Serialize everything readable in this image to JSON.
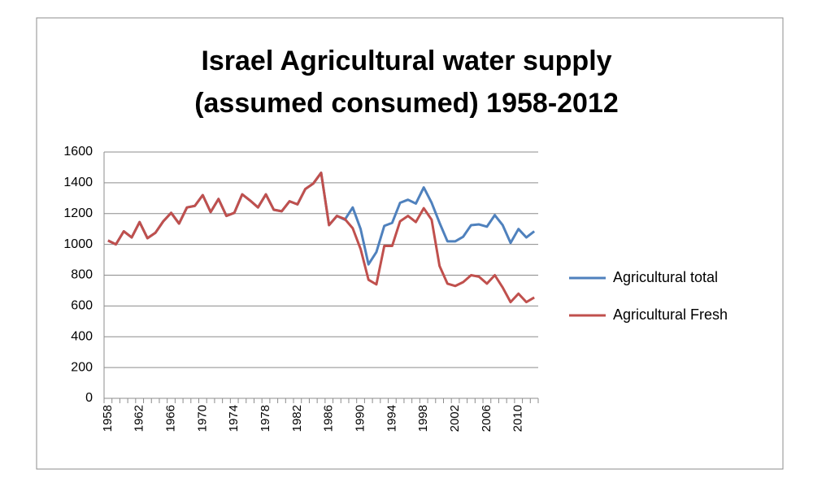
{
  "chart_data": {
    "type": "line",
    "title": [
      "Israel Agricultural water supply",
      "(assumed consumed) 1958-2012"
    ],
    "categories": [
      "1958",
      null,
      null,
      null,
      "1962",
      null,
      null,
      null,
      "1966",
      null,
      null,
      null,
      "1970",
      null,
      null,
      null,
      "1974",
      null,
      null,
      null,
      "1978",
      null,
      null,
      null,
      "1982",
      null,
      null,
      null,
      "1986",
      null,
      null,
      null,
      "1990",
      null,
      null,
      null,
      "1994",
      null,
      null,
      null,
      "1998",
      null,
      null,
      null,
      "2002",
      null,
      null,
      null,
      "2006",
      null,
      null,
      null,
      "2010",
      null,
      null
    ],
    "series": [
      {
        "name": "Agricultural total",
        "color": "#4f81bd",
        "values": [
          1025,
          1000,
          1085,
          1045,
          1145,
          1040,
          1075,
          1150,
          1205,
          1135,
          1240,
          1250,
          1320,
          1210,
          1295,
          1185,
          1205,
          1325,
          1285,
          1240,
          1325,
          1225,
          1215,
          1280,
          1260,
          1360,
          1395,
          1465,
          1125,
          1185,
          1160,
          1240,
          1100,
          870,
          950,
          1120,
          1140,
          1270,
          1290,
          1265,
          1370,
          1270,
          1140,
          1020,
          1020,
          1050,
          1125,
          1130,
          1115,
          1190,
          1125,
          1010,
          1100,
          1045,
          1085
        ]
      },
      {
        "name": "Agricultural Fresh",
        "color": "#c0504d",
        "values": [
          1025,
          1000,
          1085,
          1045,
          1145,
          1040,
          1075,
          1150,
          1205,
          1135,
          1240,
          1250,
          1320,
          1210,
          1295,
          1185,
          1205,
          1325,
          1285,
          1240,
          1325,
          1225,
          1215,
          1280,
          1260,
          1360,
          1395,
          1465,
          1125,
          1185,
          1165,
          1105,
          970,
          770,
          740,
          990,
          990,
          1150,
          1185,
          1145,
          1235,
          1160,
          860,
          745,
          730,
          755,
          800,
          790,
          745,
          800,
          720,
          625,
          680,
          625,
          655
        ]
      }
    ],
    "ylim": [
      0,
      1600
    ],
    "yticks": [
      0,
      200,
      400,
      600,
      800,
      1000,
      1200,
      1400,
      1600
    ],
    "grid": true,
    "legend": "right"
  }
}
